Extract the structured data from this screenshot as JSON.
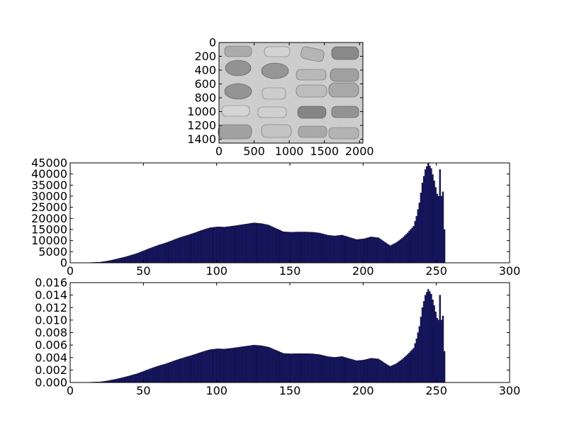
{
  "chart_data": [
    {
      "type": "image",
      "content": "grayscale photograph of wine corks arranged in a grid on a light background",
      "xlim": [
        0,
        2048
      ],
      "ylim": [
        1456,
        0
      ],
      "xticks": [
        "0",
        "500",
        "1000",
        "1500",
        "2000"
      ],
      "yticks": [
        "0",
        "200",
        "400",
        "600",
        "800",
        "1000",
        "1200",
        "1400"
      ]
    },
    {
      "type": "bar",
      "xlim": [
        0,
        300
      ],
      "ylim": [
        0,
        45000
      ],
      "xticks": [
        "0",
        "50",
        "100",
        "150",
        "200",
        "250",
        "300"
      ],
      "yticks": [
        "0",
        "5000",
        "10000",
        "15000",
        "20000",
        "25000",
        "30000",
        "35000",
        "40000",
        "45000"
      ],
      "bar_color": "#191970",
      "bar_edge_color": "#000000",
      "x": [
        0,
        10,
        20,
        25,
        30,
        35,
        40,
        45,
        50,
        55,
        60,
        65,
        70,
        75,
        80,
        85,
        90,
        95,
        100,
        105,
        110,
        115,
        120,
        125,
        130,
        135,
        140,
        145,
        150,
        155,
        160,
        165,
        170,
        175,
        180,
        185,
        190,
        195,
        200,
        205,
        210,
        215,
        218,
        222,
        226,
        230,
        234,
        236,
        238,
        240,
        242,
        244,
        246,
        248,
        250,
        251,
        252,
        253,
        254,
        255
      ],
      "values": [
        0,
        50,
        300,
        800,
        1500,
        2300,
        3200,
        4200,
        5500,
        6800,
        8000,
        9000,
        10300,
        11500,
        12500,
        13600,
        14800,
        15800,
        16200,
        16100,
        16500,
        17000,
        17500,
        18000,
        17700,
        17000,
        15500,
        14000,
        13800,
        13900,
        13900,
        13800,
        13400,
        12500,
        12100,
        12500,
        11500,
        10500,
        10800,
        11700,
        11300,
        9000,
        7700,
        9000,
        11000,
        13500,
        16500,
        21000,
        27000,
        36000,
        42000,
        44800,
        42500,
        37000,
        31000,
        30000,
        42000,
        30000,
        32000,
        15000
      ]
    },
    {
      "type": "bar",
      "xlim": [
        0,
        300
      ],
      "ylim": [
        0,
        0.016
      ],
      "xticks": [
        "0",
        "50",
        "100",
        "150",
        "200",
        "250",
        "300"
      ],
      "yticks": [
        "0.000",
        "0.002",
        "0.004",
        "0.006",
        "0.008",
        "0.010",
        "0.012",
        "0.014",
        "0.016"
      ],
      "bar_color": "#191970",
      "bar_edge_color": "#000000",
      "x": [
        0,
        10,
        20,
        25,
        30,
        35,
        40,
        45,
        50,
        55,
        60,
        65,
        70,
        75,
        80,
        85,
        90,
        95,
        100,
        105,
        110,
        115,
        120,
        125,
        130,
        135,
        140,
        145,
        150,
        155,
        160,
        165,
        170,
        175,
        180,
        185,
        190,
        195,
        200,
        205,
        210,
        215,
        218,
        222,
        226,
        230,
        234,
        236,
        238,
        240,
        242,
        244,
        246,
        248,
        250,
        251,
        252,
        253,
        254,
        255
      ],
      "values": [
        0,
        2e-05,
        0.0001,
        0.00027,
        0.0005,
        0.00077,
        0.00107,
        0.0014,
        0.00183,
        0.00227,
        0.00267,
        0.003,
        0.00343,
        0.00383,
        0.00417,
        0.00453,
        0.00493,
        0.00527,
        0.0054,
        0.00537,
        0.0055,
        0.00567,
        0.00583,
        0.006,
        0.0059,
        0.00567,
        0.00517,
        0.00467,
        0.0046,
        0.00463,
        0.00463,
        0.0046,
        0.00447,
        0.00417,
        0.00403,
        0.00417,
        0.00383,
        0.0035,
        0.0036,
        0.0039,
        0.00377,
        0.003,
        0.00257,
        0.003,
        0.00367,
        0.0045,
        0.0055,
        0.007,
        0.009,
        0.012,
        0.014,
        0.01493,
        0.01417,
        0.01233,
        0.01033,
        0.01,
        0.014,
        0.01,
        0.01067,
        0.005
      ]
    }
  ]
}
